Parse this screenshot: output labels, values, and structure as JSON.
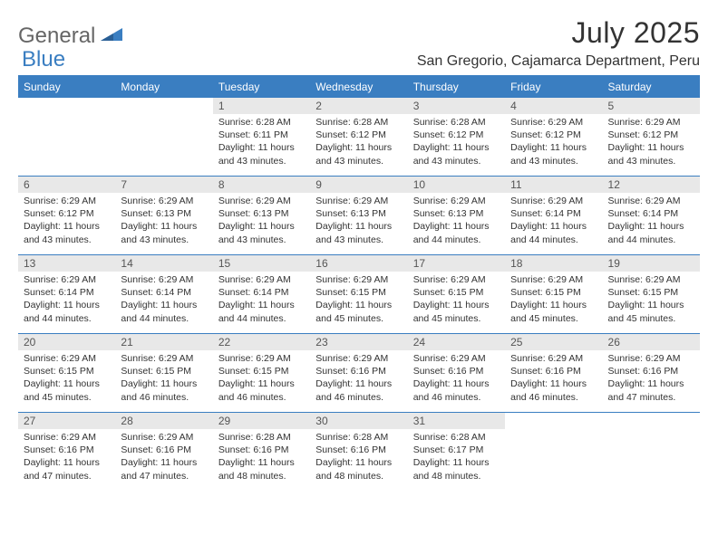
{
  "brand": {
    "part1": "General",
    "part2": "Blue"
  },
  "title": "July 2025",
  "location": "San Gregorio, Cajamarca Department, Peru",
  "colors": {
    "accent": "#3a7ec1",
    "header_bg": "#3a7ec1",
    "header_text": "#ffffff",
    "daynum_bg": "#e8e8e8",
    "body_text": "#333333",
    "logo_gray": "#666666"
  },
  "day_names": [
    "Sunday",
    "Monday",
    "Tuesday",
    "Wednesday",
    "Thursday",
    "Friday",
    "Saturday"
  ],
  "weeks": [
    [
      {
        "n": "",
        "sr": "",
        "ss": "",
        "dl": ""
      },
      {
        "n": "",
        "sr": "",
        "ss": "",
        "dl": ""
      },
      {
        "n": "1",
        "sr": "6:28 AM",
        "ss": "6:11 PM",
        "dl": "11 hours and 43 minutes."
      },
      {
        "n": "2",
        "sr": "6:28 AM",
        "ss": "6:12 PM",
        "dl": "11 hours and 43 minutes."
      },
      {
        "n": "3",
        "sr": "6:28 AM",
        "ss": "6:12 PM",
        "dl": "11 hours and 43 minutes."
      },
      {
        "n": "4",
        "sr": "6:29 AM",
        "ss": "6:12 PM",
        "dl": "11 hours and 43 minutes."
      },
      {
        "n": "5",
        "sr": "6:29 AM",
        "ss": "6:12 PM",
        "dl": "11 hours and 43 minutes."
      }
    ],
    [
      {
        "n": "6",
        "sr": "6:29 AM",
        "ss": "6:12 PM",
        "dl": "11 hours and 43 minutes."
      },
      {
        "n": "7",
        "sr": "6:29 AM",
        "ss": "6:13 PM",
        "dl": "11 hours and 43 minutes."
      },
      {
        "n": "8",
        "sr": "6:29 AM",
        "ss": "6:13 PM",
        "dl": "11 hours and 43 minutes."
      },
      {
        "n": "9",
        "sr": "6:29 AM",
        "ss": "6:13 PM",
        "dl": "11 hours and 43 minutes."
      },
      {
        "n": "10",
        "sr": "6:29 AM",
        "ss": "6:13 PM",
        "dl": "11 hours and 44 minutes."
      },
      {
        "n": "11",
        "sr": "6:29 AM",
        "ss": "6:14 PM",
        "dl": "11 hours and 44 minutes."
      },
      {
        "n": "12",
        "sr": "6:29 AM",
        "ss": "6:14 PM",
        "dl": "11 hours and 44 minutes."
      }
    ],
    [
      {
        "n": "13",
        "sr": "6:29 AM",
        "ss": "6:14 PM",
        "dl": "11 hours and 44 minutes."
      },
      {
        "n": "14",
        "sr": "6:29 AM",
        "ss": "6:14 PM",
        "dl": "11 hours and 44 minutes."
      },
      {
        "n": "15",
        "sr": "6:29 AM",
        "ss": "6:14 PM",
        "dl": "11 hours and 44 minutes."
      },
      {
        "n": "16",
        "sr": "6:29 AM",
        "ss": "6:15 PM",
        "dl": "11 hours and 45 minutes."
      },
      {
        "n": "17",
        "sr": "6:29 AM",
        "ss": "6:15 PM",
        "dl": "11 hours and 45 minutes."
      },
      {
        "n": "18",
        "sr": "6:29 AM",
        "ss": "6:15 PM",
        "dl": "11 hours and 45 minutes."
      },
      {
        "n": "19",
        "sr": "6:29 AM",
        "ss": "6:15 PM",
        "dl": "11 hours and 45 minutes."
      }
    ],
    [
      {
        "n": "20",
        "sr": "6:29 AM",
        "ss": "6:15 PM",
        "dl": "11 hours and 45 minutes."
      },
      {
        "n": "21",
        "sr": "6:29 AM",
        "ss": "6:15 PM",
        "dl": "11 hours and 46 minutes."
      },
      {
        "n": "22",
        "sr": "6:29 AM",
        "ss": "6:15 PM",
        "dl": "11 hours and 46 minutes."
      },
      {
        "n": "23",
        "sr": "6:29 AM",
        "ss": "6:16 PM",
        "dl": "11 hours and 46 minutes."
      },
      {
        "n": "24",
        "sr": "6:29 AM",
        "ss": "6:16 PM",
        "dl": "11 hours and 46 minutes."
      },
      {
        "n": "25",
        "sr": "6:29 AM",
        "ss": "6:16 PM",
        "dl": "11 hours and 46 minutes."
      },
      {
        "n": "26",
        "sr": "6:29 AM",
        "ss": "6:16 PM",
        "dl": "11 hours and 47 minutes."
      }
    ],
    [
      {
        "n": "27",
        "sr": "6:29 AM",
        "ss": "6:16 PM",
        "dl": "11 hours and 47 minutes."
      },
      {
        "n": "28",
        "sr": "6:29 AM",
        "ss": "6:16 PM",
        "dl": "11 hours and 47 minutes."
      },
      {
        "n": "29",
        "sr": "6:28 AM",
        "ss": "6:16 PM",
        "dl": "11 hours and 48 minutes."
      },
      {
        "n": "30",
        "sr": "6:28 AM",
        "ss": "6:16 PM",
        "dl": "11 hours and 48 minutes."
      },
      {
        "n": "31",
        "sr": "6:28 AM",
        "ss": "6:17 PM",
        "dl": "11 hours and 48 minutes."
      },
      {
        "n": "",
        "sr": "",
        "ss": "",
        "dl": ""
      },
      {
        "n": "",
        "sr": "",
        "ss": "",
        "dl": ""
      }
    ]
  ],
  "labels": {
    "sunrise": "Sunrise:",
    "sunset": "Sunset:",
    "daylight": "Daylight:"
  }
}
